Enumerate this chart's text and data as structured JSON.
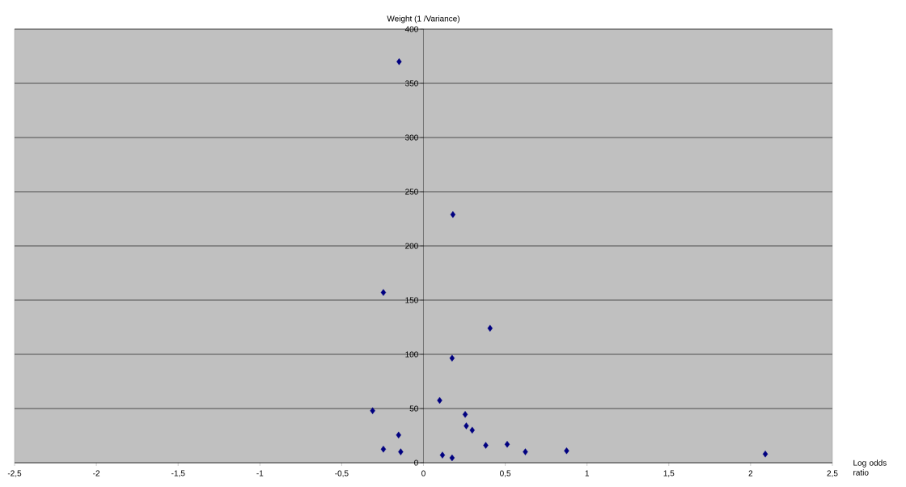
{
  "chart_data": {
    "type": "scatter",
    "xlabel": "Log odds ratio",
    "ylabel": "Weight (1 /Variance)",
    "x": [
      -0.149,
      0.18,
      -0.245,
      0.407,
      0.175,
      -0.311,
      0.099,
      0.255,
      0.262,
      0.298,
      0.381,
      0.512,
      0.623,
      -0.245,
      -0.152,
      -0.139,
      0.116,
      0.175,
      0.875,
      2.09
    ],
    "values": [
      370,
      229,
      157,
      124,
      96.5,
      48,
      57.5,
      44.5,
      34,
      30,
      16,
      17,
      10,
      12.5,
      25.5,
      10,
      7,
      4.5,
      11,
      8
    ],
    "color": "#000080",
    "marker": "diamond",
    "grid": "y",
    "xlim": [
      -2.5,
      2.5
    ],
    "ylim": [
      0,
      400
    ],
    "xticks": [
      {
        "value": -2.5,
        "label": "-2,5"
      },
      -2,
      {
        "value": -1.5,
        "label": "-1,5"
      },
      -1,
      {
        "value": -0.5,
        "label": "-0,5"
      },
      0,
      {
        "value": 0.5,
        "label": "0,5"
      },
      1,
      {
        "value": 1.5,
        "label": "1,5"
      },
      2,
      {
        "value": 2.5,
        "label": "2,5"
      }
    ],
    "yticks": [
      0,
      50,
      100,
      150,
      200,
      250,
      300,
      350,
      400
    ]
  }
}
